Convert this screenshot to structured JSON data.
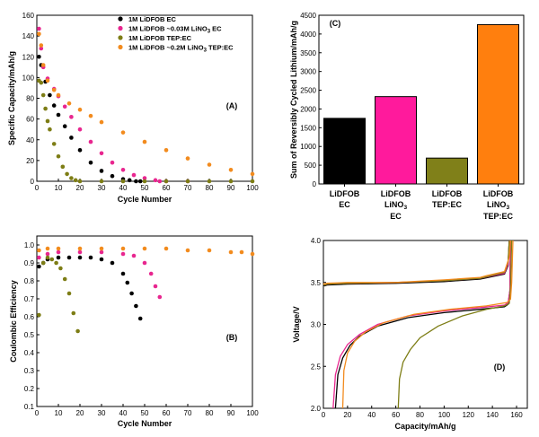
{
  "chart_data": [
    {
      "panel": "(A)",
      "type": "scatter",
      "xlabel": "Cycle Number",
      "ylabel": "Specific Capacity/mAh/g",
      "xlim": [
        0,
        100
      ],
      "ylim": [
        0,
        160
      ],
      "xticks": [
        "0",
        "10",
        "20",
        "30",
        "40",
        "50",
        "60",
        "70",
        "80",
        "90",
        "100"
      ],
      "yticks": [
        "0",
        "20",
        "40",
        "60",
        "80",
        "100",
        "120",
        "140",
        "160"
      ],
      "series": [
        {
          "name": "1M LiDFOB EC",
          "legend_main": "1M LiDFOB EC",
          "legend_sub": "",
          "legend_tail": "",
          "color": "#000000",
          "x": [
            1,
            2,
            4,
            6,
            8,
            10,
            13,
            16,
            20,
            25,
            30,
            35,
            40,
            43,
            46,
            48
          ],
          "y": [
            120,
            112,
            96,
            83,
            73,
            64,
            53,
            42,
            30,
            18,
            10,
            5,
            2,
            1,
            0,
            0
          ]
        },
        {
          "name": "1M LiDFOB ~0.03M LiNO3 EC",
          "legend_main": "1M LiDFOB ~0.03M LiNO",
          "legend_sub": "3",
          "legend_tail": " EC",
          "color": "#e8268f",
          "x": [
            1,
            2,
            3,
            5,
            8,
            10,
            13,
            16,
            20,
            25,
            30,
            35,
            40,
            45,
            50,
            55,
            57,
            60,
            70
          ],
          "y": [
            147,
            128,
            110,
            99,
            89,
            82,
            72,
            62,
            50,
            38,
            27,
            18,
            11,
            6,
            3,
            1,
            0,
            0,
            0
          ]
        },
        {
          "name": "1M LiDFOB TEP:EC",
          "legend_main": "1M LiDFOB TEP:EC",
          "legend_sub": "",
          "legend_tail": "",
          "color": "#7d7d15",
          "x": [
            1,
            2,
            3,
            4,
            5,
            6,
            8,
            10,
            12,
            14,
            16,
            18,
            20,
            30,
            40,
            50,
            60,
            70,
            80,
            90,
            100
          ],
          "y": [
            97,
            95,
            83,
            70,
            58,
            50,
            36,
            24,
            14,
            7,
            3,
            1,
            0,
            0,
            0,
            0,
            0,
            0,
            0,
            0,
            0
          ]
        },
        {
          "name": "1M LiDFOB ~0.2M LiNO3 TEP:EC",
          "legend_main": "1M LiDFOB ~0.2M LiNO",
          "legend_sub": "3",
          "legend_tail": " TEP:EC",
          "color": "#f28b1e",
          "x": [
            1,
            2,
            3,
            5,
            8,
            10,
            15,
            20,
            25,
            30,
            40,
            50,
            60,
            70,
            80,
            90,
            100
          ],
          "y": [
            142,
            131,
            112,
            97,
            88,
            83,
            75,
            69,
            63,
            57,
            47,
            38,
            30,
            22,
            16,
            11,
            7
          ]
        }
      ]
    },
    {
      "panel": "(B)",
      "type": "scatter",
      "xlabel": "Cycle Number",
      "ylabel": "Coulombic Efficiency",
      "xlim": [
        0,
        100
      ],
      "ylim": [
        0.1,
        1.0
      ],
      "xticks": [
        "0",
        "10",
        "20",
        "30",
        "40",
        "50",
        "60",
        "70",
        "80",
        "90",
        "100"
      ],
      "yticks": [
        "0.1",
        "0.2",
        "0.3",
        "0.4",
        "0.5",
        "0.6",
        "0.7",
        "0.8",
        "0.9",
        "1.0"
      ],
      "series": [
        {
          "name": "1M LiDFOB EC",
          "color": "#000000",
          "x": [
            1,
            3,
            5,
            10,
            15,
            20,
            25,
            30,
            35,
            40,
            42,
            44,
            46,
            48
          ],
          "y": [
            0.88,
            0.9,
            0.92,
            0.93,
            0.93,
            0.93,
            0.93,
            0.92,
            0.9,
            0.84,
            0.79,
            0.73,
            0.66,
            0.59
          ]
        },
        {
          "name": "1M LiDFOB ~0.03M LiNO3 EC",
          "color": "#e8268f",
          "x": [
            1,
            5,
            10,
            20,
            30,
            40,
            45,
            50,
            53,
            55,
            57
          ],
          "y": [
            0.93,
            0.95,
            0.96,
            0.96,
            0.96,
            0.95,
            0.94,
            0.9,
            0.84,
            0.77,
            0.71
          ]
        },
        {
          "name": "1M LiDFOB TEP:EC",
          "color": "#7d7d15",
          "x": [
            1,
            3,
            5,
            7,
            9,
            11,
            13,
            15,
            17,
            19
          ],
          "y": [
            0.61,
            0.9,
            0.93,
            0.92,
            0.9,
            0.87,
            0.81,
            0.73,
            0.62,
            0.52
          ]
        },
        {
          "name": "1M LiDFOB ~0.2M LiNO3 TEP:EC",
          "color": "#f28b1e",
          "x": [
            1,
            5,
            10,
            20,
            30,
            40,
            50,
            60,
            70,
            80,
            90,
            95,
            100
          ],
          "y": [
            0.97,
            0.98,
            0.98,
            0.98,
            0.98,
            0.98,
            0.98,
            0.98,
            0.97,
            0.97,
            0.96,
            0.96,
            0.95
          ]
        }
      ]
    },
    {
      "panel": "(C)",
      "type": "bar",
      "ylabel": "Sum of Reversibly Cycled Lithium/mAh/g",
      "ylim": [
        0,
        4500
      ],
      "yticks": [
        "0",
        "500",
        "1000",
        "1500",
        "2000",
        "2500",
        "3000",
        "3500",
        "4000",
        "4500"
      ],
      "categories": [
        {
          "l1": "LiDFOB",
          "l2": "EC",
          "l2sub": "",
          "l3": ""
        },
        {
          "l1": "LiDFOB",
          "l2": "LiNO",
          "l2sub": "3",
          "l3": "EC"
        },
        {
          "l1": "LiDFOB",
          "l2": "TEP:EC",
          "l2sub": "",
          "l3": ""
        },
        {
          "l1": "LiDFOB",
          "l2": "LiNO",
          "l2sub": "3",
          "l3": "TEP:EC"
        }
      ],
      "values": [
        1750,
        2330,
        690,
        4250
      ],
      "colors": [
        "#000000",
        "#ff1a9c",
        "#808019",
        "#ff7f0e"
      ]
    },
    {
      "panel": "(D)",
      "type": "line",
      "xlabel": "Capacity/mAh/g",
      "ylabel": "Voltage/V",
      "xlim": [
        0,
        160
      ],
      "ylim": [
        2.0,
        4.0
      ],
      "xticks": [
        "0",
        "20",
        "40",
        "60",
        "80",
        "100",
        "120",
        "140",
        "160"
      ],
      "yticks": [
        "2.0",
        "2.5",
        "3.0",
        "3.5",
        "4.0"
      ],
      "series": [
        {
          "name": "1M LiDFOB EC",
          "color": "#000000",
          "discharge": {
            "x": [
              10,
              12,
              16,
              22,
              30,
              45,
              70,
              100,
              130,
              150,
              153,
              154.5,
              155
            ],
            "y": [
              2.0,
              2.4,
              2.6,
              2.75,
              2.86,
              2.98,
              3.08,
              3.14,
              3.18,
              3.21,
              3.24,
              3.4,
              4.0
            ]
          },
          "charge": {
            "x": [
              0,
              1,
              3,
              20,
              60,
              100,
              130,
              150,
              153,
              154
            ],
            "y": [
              3.47,
              3.46,
              3.47,
              3.48,
              3.49,
              3.51,
              3.54,
              3.6,
              3.7,
              4.0
            ]
          }
        },
        {
          "name": "1M LiDFOB ~0.03M LiNO3 EC",
          "color": "#e8268f",
          "discharge": {
            "x": [
              8,
              10,
              14,
              20,
              30,
              45,
              70,
              100,
              130,
              150,
              153,
              154.5,
              155
            ],
            "y": [
              2.0,
              2.4,
              2.62,
              2.76,
              2.88,
              3.0,
              3.1,
              3.16,
              3.2,
              3.23,
              3.26,
              3.4,
              4.0
            ]
          },
          "charge": {
            "x": [
              0,
              1,
              3,
              20,
              60,
              100,
              130,
              150,
              153,
              154
            ],
            "y": [
              3.48,
              3.47,
              3.48,
              3.49,
              3.5,
              3.52,
              3.55,
              3.61,
              3.72,
              4.0
            ]
          }
        },
        {
          "name": "1M LiDFOB TEP:EC",
          "color": "#7d7d15",
          "discharge": {
            "x": [
              62,
              63,
              66,
              72,
              80,
              95,
              115,
              135,
              150,
              154,
              155,
              156
            ],
            "y": [
              2.0,
              2.35,
              2.55,
              2.7,
              2.84,
              2.98,
              3.1,
              3.18,
              3.22,
              3.25,
              3.45,
              4.0
            ]
          },
          "charge": {
            "x": [
              0,
              1,
              3,
              20,
              60,
              100,
              130,
              150,
              153,
              154
            ],
            "y": [
              3.48,
              3.47,
              3.48,
              3.49,
              3.5,
              3.52,
              3.55,
              3.62,
              3.75,
              4.0
            ]
          }
        },
        {
          "name": "1M LiDFOB ~0.2M LiNO3 TEP:EC",
          "color": "#f28b1e",
          "discharge": {
            "x": [
              16,
              17,
              20,
              26,
              35,
              50,
              75,
              105,
              135,
              152,
              155,
              156,
              157
            ],
            "y": [
              2.0,
              2.45,
              2.66,
              2.8,
              2.91,
              3.02,
              3.12,
              3.18,
              3.22,
              3.26,
              3.3,
              3.5,
              4.0
            ]
          },
          "charge": {
            "x": [
              0,
              1,
              3,
              20,
              60,
              100,
              130,
              135,
              150,
              154,
              155
            ],
            "y": [
              3.49,
              3.48,
              3.49,
              3.5,
              3.5,
              3.53,
              3.56,
              3.58,
              3.63,
              3.8,
              4.0
            ]
          }
        }
      ]
    }
  ]
}
